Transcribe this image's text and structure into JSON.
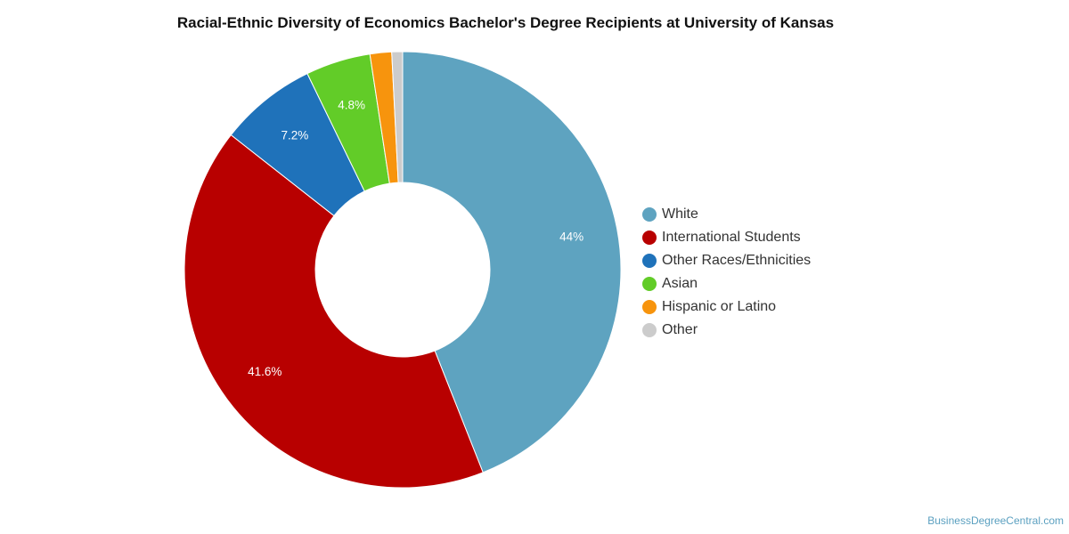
{
  "chart_data": {
    "type": "pie",
    "title": "Racial-Ethnic Diversity of Economics Bachelor's Degree Recipients at University of Kansas",
    "donut": true,
    "legend_position": "right",
    "slices": [
      {
        "name": "White",
        "value": 44.0,
        "label": "44%",
        "color": "#5ea3c0"
      },
      {
        "name": "International Students",
        "value": 41.6,
        "label": "41.6%",
        "color": "#b80000"
      },
      {
        "name": "Other Races/Ethnicities",
        "value": 7.2,
        "label": "7.2%",
        "color": "#1f72ba"
      },
      {
        "name": "Asian",
        "value": 4.8,
        "label": "4.8%",
        "color": "#62cc28"
      },
      {
        "name": "Hispanic or Latino",
        "value": 1.6,
        "label": "",
        "color": "#f7940d"
      },
      {
        "name": "Other",
        "value": 0.8,
        "label": "",
        "color": "#cccccc"
      }
    ]
  },
  "credit": "BusinessDegreeCentral.com"
}
